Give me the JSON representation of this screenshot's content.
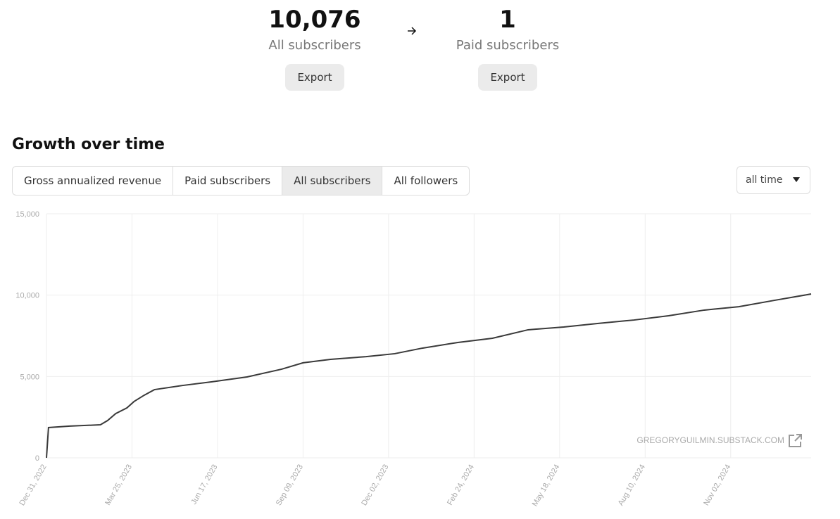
{
  "stats": [
    {
      "value": "10,076",
      "label": "All subscribers",
      "button": "Export"
    },
    {
      "value": "1",
      "label": "Paid subscribers",
      "button": "Export"
    }
  ],
  "section_title": "Growth over time",
  "tabs": [
    "Gross annualized revenue",
    "Paid subscribers",
    "All subscribers",
    "All followers"
  ],
  "range_select": "all time",
  "chart_data": {
    "type": "line",
    "source": "GREGORYGUILMIN.SUBSTACK.COM",
    "color": "#3a3a3a",
    "grid": true,
    "x": [
      "2022-12-31",
      "2023-01-02",
      "2023-01-23",
      "2023-02-22",
      "2023-03-01",
      "2023-03-09",
      "2023-03-20",
      "2023-03-27",
      "2023-04-06",
      "2023-04-16",
      "2023-05-14",
      "2023-06-11",
      "2023-07-16",
      "2023-08-19",
      "2023-09-09",
      "2023-10-06",
      "2023-11-10",
      "2023-12-08",
      "2024-01-04",
      "2024-02-08",
      "2024-03-13",
      "2024-04-17",
      "2024-05-22",
      "2024-06-25",
      "2024-07-30",
      "2024-09-02",
      "2024-10-07",
      "2024-11-10",
      "2024-12-15",
      "2025-01-20"
    ],
    "values": [
      0,
      1860,
      1950,
      2030,
      2290,
      2720,
      3070,
      3460,
      3850,
      4190,
      4450,
      4670,
      4970,
      5450,
      5840,
      6050,
      6220,
      6400,
      6740,
      7090,
      7350,
      7870,
      8040,
      8260,
      8470,
      8730,
      9080,
      9290,
      9680,
      10070
    ],
    "xlim": [
      "2022-12-31",
      "2025-01-20"
    ],
    "xticks": [
      {
        "value": "2022-12-31",
        "label": "Dec 31, 2022"
      },
      {
        "value": "2023-03-25",
        "label": "Mar 25, 2023"
      },
      {
        "value": "2023-06-17",
        "label": "Jun 17, 2023"
      },
      {
        "value": "2023-09-09",
        "label": "Sep 09, 2023"
      },
      {
        "value": "2023-12-02",
        "label": "Dec 02, 2023"
      },
      {
        "value": "2024-02-24",
        "label": "Feb 24, 2024"
      },
      {
        "value": "2024-05-18",
        "label": "May 18, 2024"
      },
      {
        "value": "2024-08-10",
        "label": "Aug 10, 2024"
      },
      {
        "value": "2024-11-02",
        "label": "Nov 02, 2024"
      }
    ],
    "ylim": [
      0,
      15000
    ],
    "yticks": [
      0,
      {
        "value": 5000,
        "label": "5,000"
      },
      {
        "value": 10000,
        "label": "10,000"
      },
      {
        "value": 15000,
        "label": "15,000"
      }
    ]
  }
}
